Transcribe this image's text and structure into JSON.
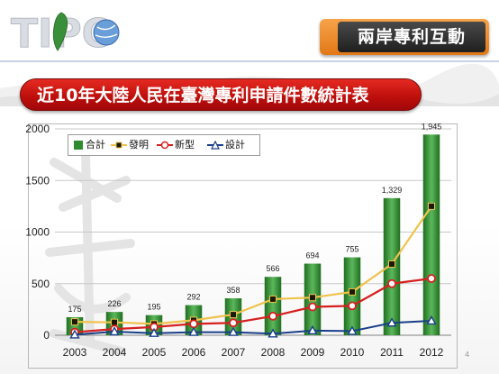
{
  "header": {
    "logo_text": "TIPO",
    "section_title": "兩岸專利互動"
  },
  "banner": {
    "title": "近10年大陸人民在臺灣專利申請件數統計表"
  },
  "page_number": "4",
  "colors": {
    "bar": "#2e8b2e",
    "invention": "#f0c24c",
    "utility": "#d62020",
    "design": "#1a3f8a",
    "banner": "#c0100c",
    "section_title_accent": "#e27816"
  },
  "chart_data": {
    "type": "bar",
    "categories": [
      "2003",
      "2004",
      "2005",
      "2006",
      "2007",
      "2008",
      "2009",
      "2010",
      "2011",
      "2012"
    ],
    "ylim": [
      0,
      2000
    ],
    "yticks": [
      0,
      500,
      1000,
      1500,
      2000
    ],
    "ytick_labels": [
      "0",
      "500",
      "1000",
      "1500",
      "2000"
    ],
    "grid": "horizontal",
    "legend_position": "top-left",
    "series": [
      {
        "name": "合計",
        "kind": "bar",
        "values": [
          175,
          226,
          195,
          292,
          358,
          566,
          694,
          755,
          1329,
          1945
        ],
        "value_labels": [
          "175",
          "226",
          "195",
          "292",
          "358",
          "566",
          "694",
          "755",
          "1,329",
          "1,945"
        ]
      },
      {
        "name": "發明",
        "kind": "line",
        "marker": "square",
        "values": [
          130,
          125,
          110,
          145,
          200,
          350,
          365,
          420,
          690,
          1250
        ]
      },
      {
        "name": "新型",
        "kind": "line",
        "marker": "circle",
        "values": [
          30,
          60,
          80,
          110,
          120,
          185,
          275,
          285,
          500,
          550
        ]
      },
      {
        "name": "設計",
        "kind": "line",
        "marker": "triangle",
        "values": [
          5,
          35,
          20,
          30,
          30,
          15,
          45,
          40,
          120,
          140
        ]
      }
    ]
  }
}
